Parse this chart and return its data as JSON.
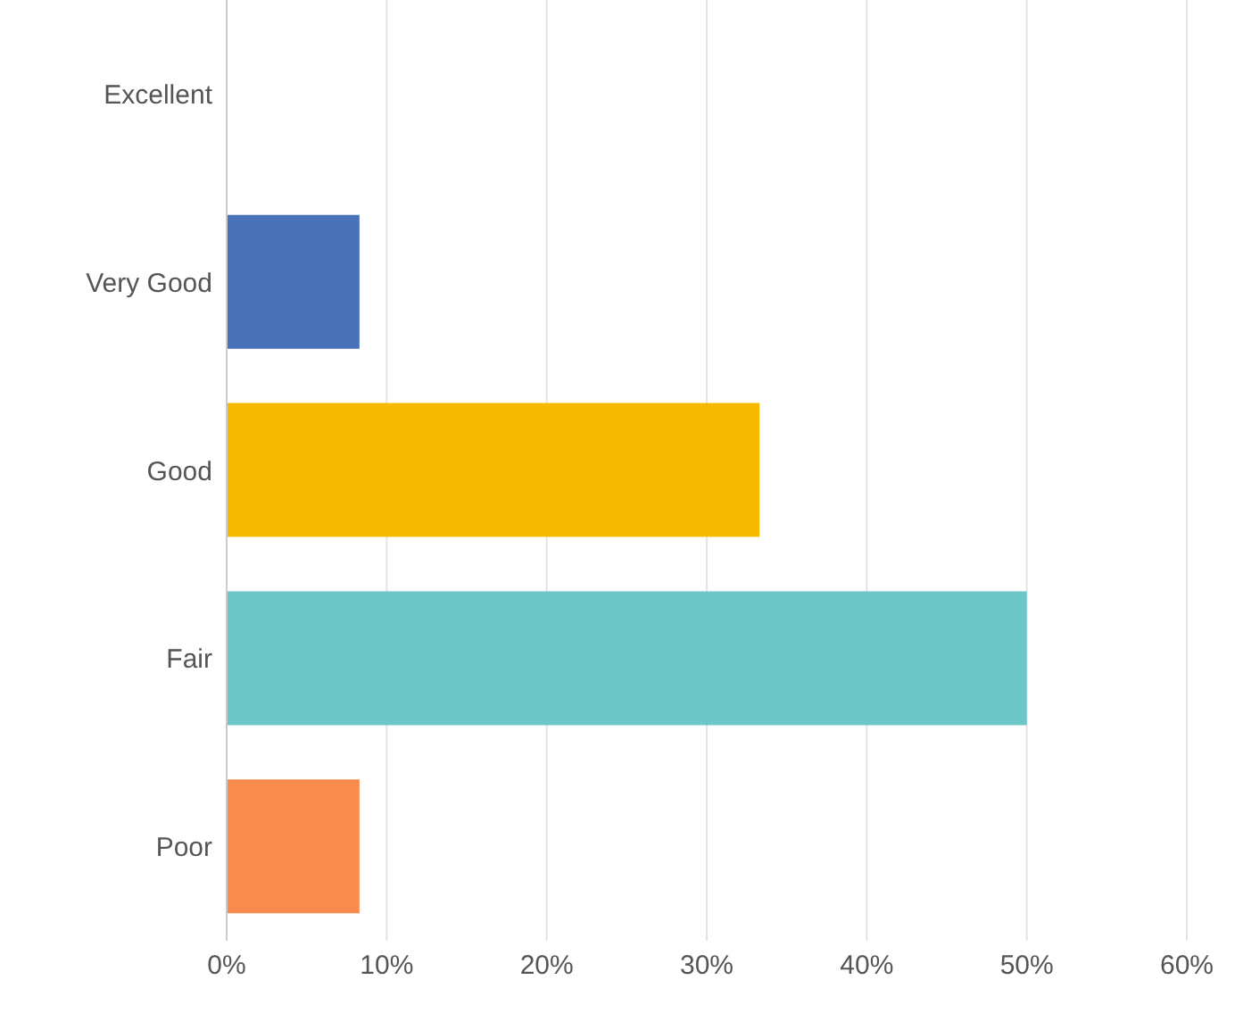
{
  "chart_data": {
    "type": "bar",
    "orientation": "horizontal",
    "categories": [
      "Excellent",
      "Very Good",
      "Good",
      "Fair",
      "Poor"
    ],
    "values": [
      0,
      8.3,
      33.3,
      50,
      8.3
    ],
    "colors": [
      "#4a72b8",
      "#4a72b8",
      "#f6bb00",
      "#6cc7c8",
      "#f98b4f"
    ],
    "xlim": [
      0,
      60
    ],
    "xticks": [
      {
        "value": 0,
        "label": "0%"
      },
      {
        "value": 10,
        "label": "10%"
      },
      {
        "value": 20,
        "label": "20%"
      },
      {
        "value": 30,
        "label": "30%"
      },
      {
        "value": 40,
        "label": "40%"
      },
      {
        "value": 50,
        "label": "50%"
      },
      {
        "value": 60,
        "label": "60%"
      }
    ],
    "grid": "x"
  }
}
